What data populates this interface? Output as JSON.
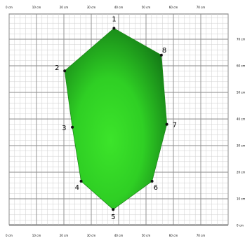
{
  "grid": {
    "x_labels": [
      "0 cm",
      "10 cm",
      "20 cm",
      "30 cm",
      "40 cm",
      "50 cm",
      "60 cm",
      "70 cm"
    ],
    "y_labels": [
      "70 cm",
      "60 cm",
      "50 cm",
      "40 cm",
      "30 cm",
      "20 cm",
      "10 cm",
      "0 cm"
    ]
  },
  "shape": {
    "fill_light": "#3ce42a",
    "fill_dark": "#0f6a14",
    "vertices": [
      {
        "label": "1",
        "x": 38.3,
        "y": 74.1
      },
      {
        "label": "8",
        "x": 55.6,
        "y": 64.0
      },
      {
        "label": "7",
        "x": 57.6,
        "y": 38.0
      },
      {
        "label": "6",
        "x": 52.2,
        "y": 16.6
      },
      {
        "label": "5",
        "x": 38.0,
        "y": 6.0
      },
      {
        "label": "4",
        "x": 26.3,
        "y": 16.6
      },
      {
        "label": "3",
        "x": 23.1,
        "y": 36.9
      },
      {
        "label": "2",
        "x": 20.3,
        "y": 58.1
      }
    ]
  }
}
